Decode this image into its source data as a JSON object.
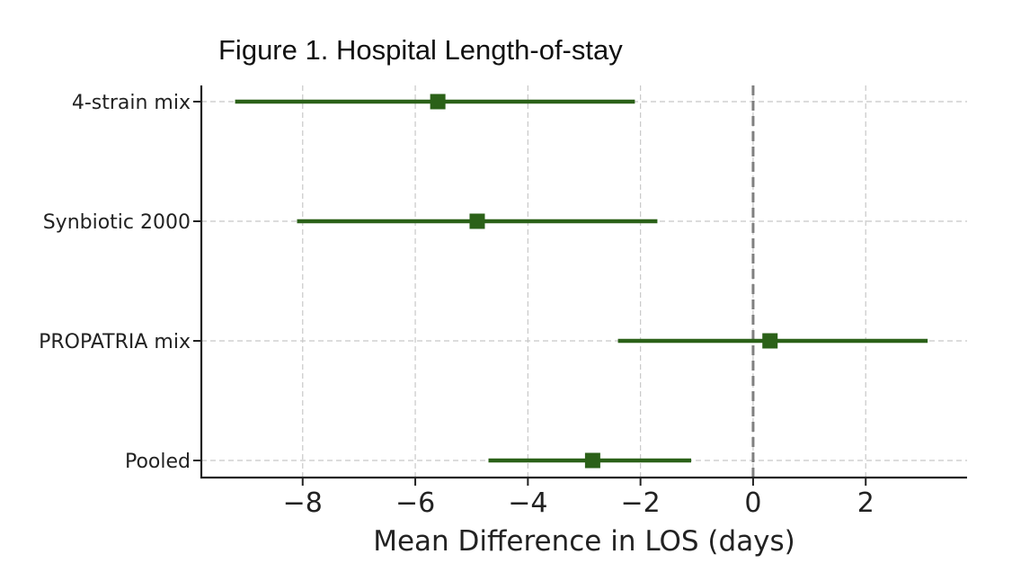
{
  "chart_data": {
    "type": "forest",
    "title": "Figure 1. Hospital Length-of-stay",
    "xlabel": "Mean Difference in LOS (days)",
    "ylabel": "",
    "xlim": [
      -9.8,
      3.8
    ],
    "xticks": [
      -8,
      -6,
      -4,
      -2,
      0,
      2
    ],
    "xtick_labels": [
      "−8",
      "−6",
      "−4",
      "−2",
      "0",
      "2"
    ],
    "reference_line": 0,
    "grid": true,
    "color": "#2b6118",
    "rows": [
      {
        "label": "4-strain mix",
        "estimate": -5.6,
        "lower": -9.2,
        "upper": -2.1
      },
      {
        "label": "Synbiotic 2000",
        "estimate": -4.9,
        "lower": -8.1,
        "upper": -1.7
      },
      {
        "label": "PROPATRIA mix",
        "estimate": 0.3,
        "lower": -2.4,
        "upper": 3.1
      },
      {
        "label": "Pooled",
        "estimate": -2.85,
        "lower": -4.7,
        "upper": -1.1
      }
    ]
  }
}
